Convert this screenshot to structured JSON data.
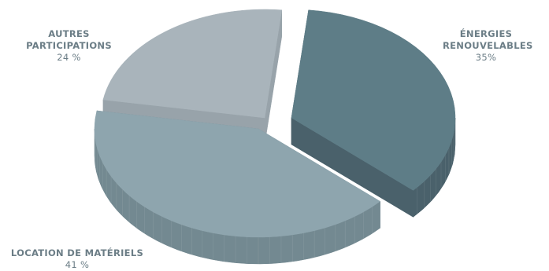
{
  "chart_data": {
    "type": "pie",
    "style": "3d-exploded",
    "slices": [
      {
        "label_line1": "AUTRES",
        "label_line2": "PARTICIPATIONS",
        "label": "AUTRES PARTICIPATIONS",
        "value": 24,
        "value_text": "24 %",
        "color": "#a9b4bb",
        "side_color": "#98a3aa"
      },
      {
        "label_line1": "ÉNERGIES",
        "label_line2": "RENOUVELABLES",
        "label": "ÉNERGIES RENOUVELABLES",
        "value": 35,
        "value_text": "35%",
        "color": "#5e7d87",
        "side_color": "#4a616b"
      },
      {
        "label_line1": "LOCATION DE MATÉRIELS",
        "label_line2": "",
        "label": "LOCATION DE MATÉRIELS",
        "value": 41,
        "value_text": "41 %",
        "color": "#8ea5ae",
        "side_color": "#738991"
      }
    ]
  }
}
